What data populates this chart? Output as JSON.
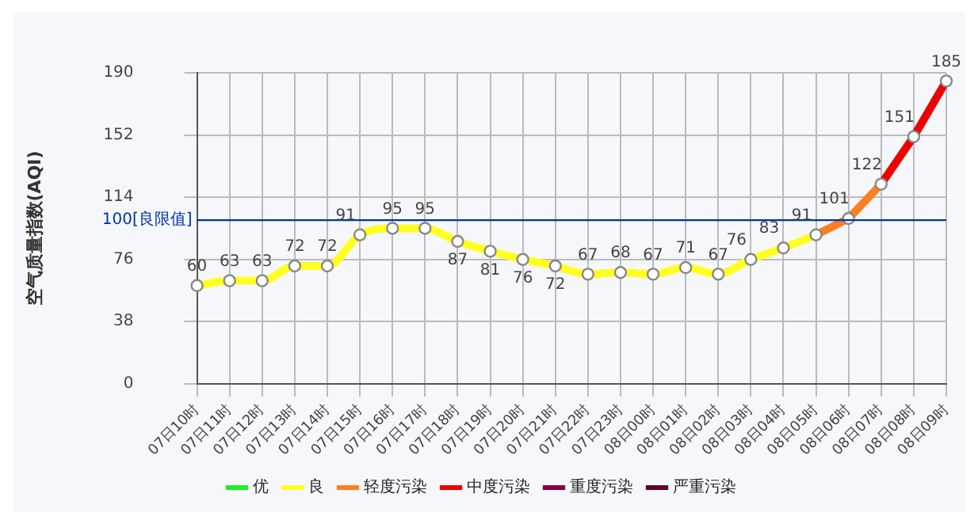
{
  "chart_data": {
    "type": "line",
    "ylabel": "空气质量指数(AQI)",
    "categories": [
      "07日10时",
      "07日11时",
      "07日12时",
      "07日13时",
      "07日14时",
      "07日15时",
      "07日16时",
      "07日17时",
      "07日18时",
      "07日19时",
      "07日20时",
      "07日21时",
      "07日22时",
      "07日23时",
      "08日00时",
      "08日01时",
      "08日02时",
      "08日03时",
      "08日04时",
      "08日05时",
      "08日06时",
      "08日07时",
      "08日08时",
      "08日09时"
    ],
    "series": [
      {
        "name": "优",
        "color": "#22ee22",
        "values": [
          null,
          null,
          null,
          null,
          null,
          null,
          null,
          null,
          null,
          null,
          null,
          null,
          null,
          null,
          null,
          null,
          null,
          null,
          null,
          null,
          null,
          null,
          null,
          null
        ]
      },
      {
        "name": "良",
        "color": "#ffff22",
        "values": [
          60,
          63,
          63,
          72,
          72,
          91,
          95,
          95,
          87,
          81,
          76,
          72,
          67,
          68,
          67,
          71,
          67,
          76,
          83,
          91,
          null,
          null,
          null,
          null
        ]
      },
      {
        "name": "轻度污染",
        "color": "#ff7e22",
        "values": [
          null,
          null,
          null,
          null,
          null,
          null,
          null,
          null,
          null,
          null,
          null,
          null,
          null,
          null,
          null,
          null,
          null,
          null,
          null,
          null,
          101,
          122,
          null,
          null
        ]
      },
      {
        "name": "中度污染",
        "color": "#ee0000",
        "values": [
          null,
          null,
          null,
          null,
          null,
          null,
          null,
          null,
          null,
          null,
          null,
          null,
          null,
          null,
          null,
          null,
          null,
          null,
          null,
          null,
          null,
          null,
          151,
          185
        ]
      },
      {
        "name": "重度污染",
        "color": "#880044",
        "values": [
          null,
          null,
          null,
          null,
          null,
          null,
          null,
          null,
          null,
          null,
          null,
          null,
          null,
          null,
          null,
          null,
          null,
          null,
          null,
          null,
          null,
          null,
          null,
          null
        ]
      },
      {
        "name": "严重污染",
        "color": "#660022",
        "values": [
          null,
          null,
          null,
          null,
          null,
          null,
          null,
          null,
          null,
          null,
          null,
          null,
          null,
          null,
          null,
          null,
          null,
          null,
          null,
          null,
          null,
          null,
          null,
          null
        ]
      }
    ],
    "ylim": [
      0,
      190
    ],
    "yticks": [
      0,
      38,
      76,
      114,
      152,
      190
    ],
    "ref_lines": [
      {
        "axis": "y",
        "value": 100,
        "label": "100[良限值]",
        "color": "#0033aa"
      }
    ],
    "grid": true,
    "legend": "bottom",
    "marker": "circle",
    "data_labels": true
  }
}
